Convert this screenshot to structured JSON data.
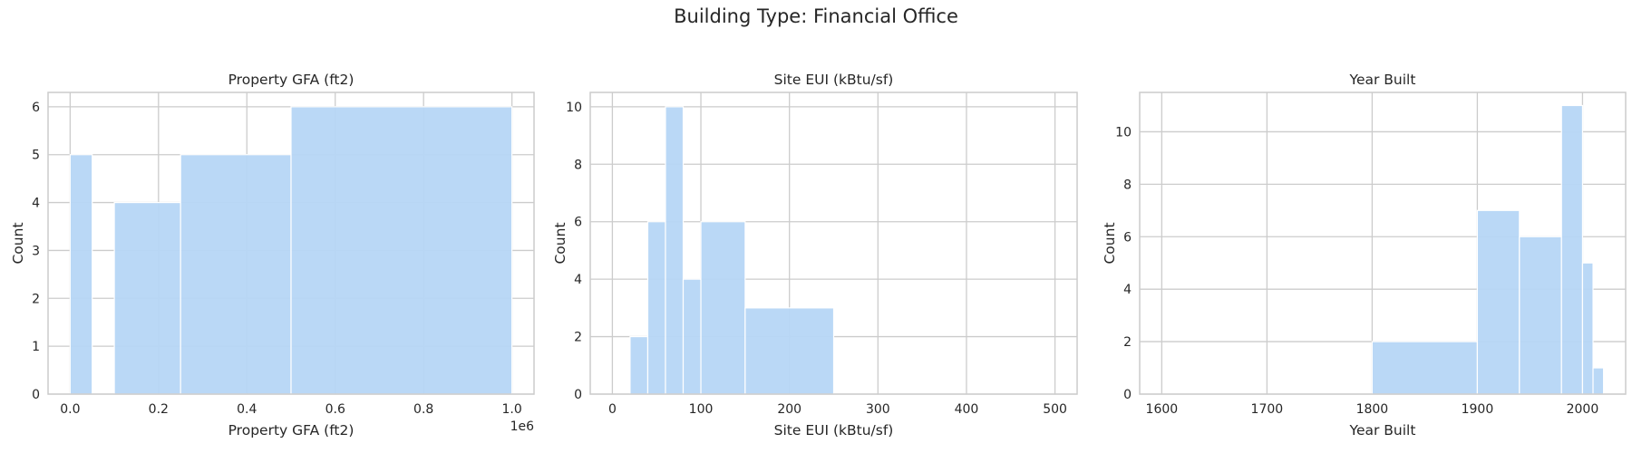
{
  "figure": {
    "title": "Building Type: Financial Office"
  },
  "style": {
    "bar_color": "#b6d6f5",
    "grid_color": "#cccccc",
    "spine_color": "#cccccc"
  },
  "chart_data": [
    {
      "type": "bar",
      "title": "Property GFA (ft2)",
      "xlabel": "Property GFA (ft2)",
      "ylabel": "Count",
      "xlim": [
        -50000,
        1050000
      ],
      "ylim": [
        0,
        6.3
      ],
      "xticks": [
        0,
        200000,
        400000,
        600000,
        800000,
        1000000
      ],
      "xtick_labels": [
        "0.0",
        "0.2",
        "0.4",
        "0.6",
        "0.8",
        "1.0"
      ],
      "yticks": [
        0,
        1,
        2,
        3,
        4,
        5,
        6
      ],
      "offset_label": "1e6",
      "grid": true,
      "bins": [
        {
          "x0": 0,
          "x1": 50000,
          "count": 5
        },
        {
          "x0": 100000,
          "x1": 250000,
          "count": 4
        },
        {
          "x0": 250000,
          "x1": 500000,
          "count": 5
        },
        {
          "x0": 500000,
          "x1": 1000000,
          "count": 6
        }
      ]
    },
    {
      "type": "bar",
      "title": "Site EUI (kBtu/sf)",
      "xlabel": "Site EUI (kBtu/sf)",
      "ylabel": "Count",
      "xlim": [
        -25,
        525
      ],
      "ylim": [
        0,
        10.5
      ],
      "xticks": [
        0,
        100,
        200,
        300,
        400,
        500
      ],
      "xtick_labels": [
        "0",
        "100",
        "200",
        "300",
        "400",
        "500"
      ],
      "yticks": [
        0,
        2,
        4,
        6,
        8,
        10
      ],
      "grid": true,
      "bins": [
        {
          "x0": 20,
          "x1": 40,
          "count": 2
        },
        {
          "x0": 40,
          "x1": 60,
          "count": 6
        },
        {
          "x0": 60,
          "x1": 80,
          "count": 10
        },
        {
          "x0": 80,
          "x1": 100,
          "count": 4
        },
        {
          "x0": 100,
          "x1": 150,
          "count": 6
        },
        {
          "x0": 150,
          "x1": 250,
          "count": 3
        }
      ]
    },
    {
      "type": "bar",
      "title": "Year Built",
      "xlabel": "Year Built",
      "ylabel": "Count",
      "xlim": [
        1579,
        2041
      ],
      "ylim": [
        0,
        11.5
      ],
      "xticks": [
        1600,
        1700,
        1800,
        1900,
        2000
      ],
      "xtick_labels": [
        "1600",
        "1700",
        "1800",
        "1900",
        "2000"
      ],
      "yticks": [
        0,
        2,
        4,
        6,
        8,
        10
      ],
      "grid": true,
      "bins": [
        {
          "x0": 1800,
          "x1": 1900,
          "count": 2
        },
        {
          "x0": 1900,
          "x1": 1940,
          "count": 7
        },
        {
          "x0": 1940,
          "x1": 1980,
          "count": 6
        },
        {
          "x0": 1980,
          "x1": 2000,
          "count": 11
        },
        {
          "x0": 2000,
          "x1": 2010,
          "count": 5
        },
        {
          "x0": 2010,
          "x1": 2020,
          "count": 1
        }
      ]
    }
  ]
}
